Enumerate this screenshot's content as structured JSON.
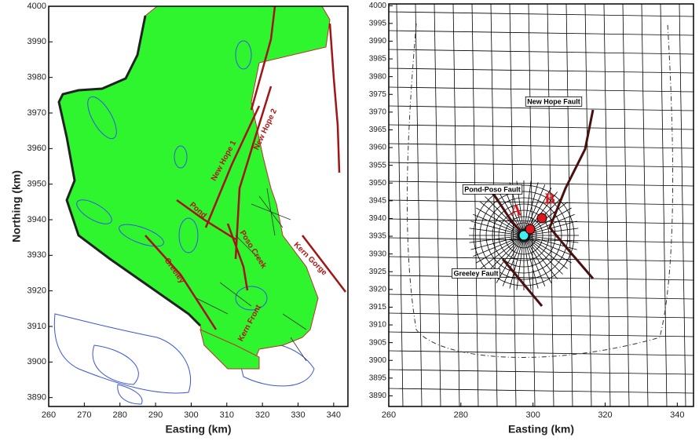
{
  "chart_data": [
    {
      "type": "map",
      "xlabel": "Easting (km)",
      "ylabel": "Northing (km)",
      "xlim": [
        260,
        344
      ],
      "ylim": [
        3887.5,
        4000
      ],
      "xticks": [
        260,
        270,
        280,
        290,
        300,
        310,
        320,
        330,
        340
      ],
      "yticks": [
        3890,
        3900,
        3910,
        3920,
        3930,
        3940,
        3950,
        3960,
        3970,
        3980,
        3990,
        4000
      ],
      "annotations": [
        "New Hope 1",
        "New Hope 2",
        "Pond",
        "Poso Creek",
        "Kern Gorge",
        "Greeley",
        "Kern Front"
      ]
    },
    {
      "type": "map",
      "xlabel": "Easting (km)",
      "xlim": [
        260,
        344.5
      ],
      "ylim": [
        3887,
        4000.5
      ],
      "xticks": [
        260,
        280,
        300,
        320,
        340
      ],
      "yticks": [
        3890,
        3895,
        3900,
        3905,
        3910,
        3915,
        3920,
        3925,
        3930,
        3935,
        3940,
        3945,
        3950,
        3955,
        3960,
        3965,
        3970,
        3975,
        3980,
        3985,
        3990,
        3995,
        4000
      ],
      "annotations": [
        "New Hope Fault",
        "Pond-Poso Fault",
        "Greeley Fault",
        "A",
        "B"
      ]
    }
  ]
}
